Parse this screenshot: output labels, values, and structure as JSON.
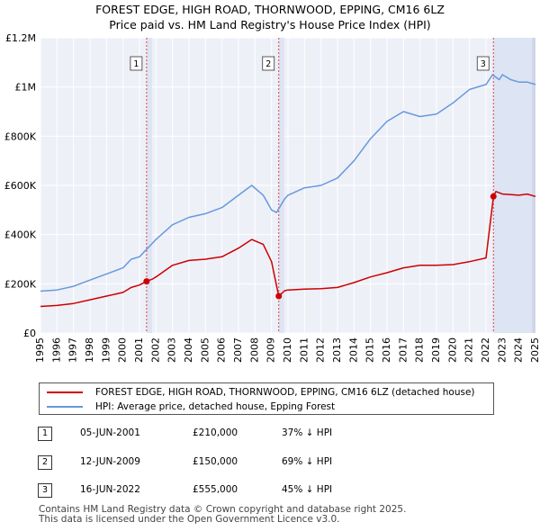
{
  "title_line1": "FOREST EDGE, HIGH ROAD, THORNWOOD, EPPING, CM16 6LZ",
  "title_line2": "Price paid vs. HM Land Registry's House Price Index (HPI)",
  "chart_data": {
    "type": "line",
    "xlim": [
      1995,
      2025
    ],
    "ylim": [
      0,
      1200000
    ],
    "y_ticks": [
      0,
      200000,
      400000,
      600000,
      800000,
      1000000,
      1200000
    ],
    "y_tick_labels": [
      "£0",
      "£200K",
      "£400K",
      "£600K",
      "£800K",
      "£1M",
      "£1.2M"
    ],
    "x_ticks": [
      1995,
      1996,
      1997,
      1998,
      1999,
      2000,
      2001,
      2002,
      2003,
      2004,
      2005,
      2006,
      2007,
      2008,
      2009,
      2010,
      2011,
      2012,
      2013,
      2014,
      2015,
      2016,
      2017,
      2018,
      2019,
      2020,
      2021,
      2022,
      2023,
      2024,
      2025
    ],
    "grid": true,
    "series": [
      {
        "name": "FOREST EDGE, HIGH ROAD, THORNWOOD, EPPING, CM16 6LZ (detached house)",
        "color": "#cc0000",
        "x": [
          1995.0,
          1996.0,
          1997.0,
          1998.0,
          1999.0,
          2000.0,
          2000.5,
          2001.0,
          2001.43,
          2001.8,
          2002.0,
          2003.0,
          2004.0,
          2005.0,
          2006.0,
          2007.0,
          2007.8,
          2008.5,
          2009.0,
          2009.44,
          2009.8,
          2010.0,
          2011.0,
          2012.0,
          2013.0,
          2014.0,
          2015.0,
          2016.0,
          2017.0,
          2018.0,
          2019.0,
          2020.0,
          2021.0,
          2022.0,
          2022.45,
          2022.6,
          2023.0,
          2024.0,
          2024.5,
          2025.0
        ],
        "y": [
          108000,
          112000,
          120000,
          135000,
          150000,
          165000,
          185000,
          195000,
          210000,
          220000,
          228000,
          275000,
          295000,
          300000,
          310000,
          345000,
          380000,
          360000,
          290000,
          150000,
          172000,
          175000,
          178000,
          180000,
          185000,
          205000,
          228000,
          245000,
          265000,
          275000,
          275000,
          278000,
          290000,
          305000,
          555000,
          575000,
          565000,
          560000,
          565000,
          555000
        ]
      },
      {
        "name": "HPI: Average price, detached house, Epping Forest",
        "color": "#6699dd",
        "x": [
          1995.0,
          1996.0,
          1997.0,
          1998.0,
          1999.0,
          2000.0,
          2000.5,
          2001.0,
          2002.0,
          2003.0,
          2004.0,
          2005.0,
          2006.0,
          2007.0,
          2007.8,
          2008.5,
          2009.0,
          2009.3,
          2009.8,
          2010.0,
          2011.0,
          2012.0,
          2013.0,
          2014.0,
          2015.0,
          2016.0,
          2017.0,
          2018.0,
          2019.0,
          2020.0,
          2021.0,
          2022.0,
          2022.4,
          2022.8,
          2023.0,
          2023.5,
          2024.0,
          2024.5,
          2025.0
        ],
        "y": [
          170000,
          175000,
          190000,
          215000,
          240000,
          265000,
          300000,
          310000,
          380000,
          440000,
          470000,
          485000,
          510000,
          560000,
          600000,
          560000,
          500000,
          490000,
          545000,
          560000,
          590000,
          600000,
          630000,
          700000,
          790000,
          860000,
          900000,
          880000,
          890000,
          935000,
          990000,
          1010000,
          1050000,
          1030000,
          1050000,
          1030000,
          1020000,
          1020000,
          1010000
        ]
      }
    ],
    "sales": [
      {
        "label": "1",
        "x": 2001.43,
        "y": 210000
      },
      {
        "label": "2",
        "x": 2009.44,
        "y": 150000
      },
      {
        "label": "3",
        "x": 2022.45,
        "y": 555000
      }
    ]
  },
  "legend": {
    "red_label": "FOREST EDGE, HIGH ROAD, THORNWOOD, EPPING, CM16 6LZ (detached house)",
    "blue_label": "HPI: Average price, detached house, Epping Forest"
  },
  "transactions": [
    {
      "num": "1",
      "date": "05-JUN-2001",
      "price": "£210,000",
      "hpi": "37% ↓ HPI"
    },
    {
      "num": "2",
      "date": "12-JUN-2009",
      "price": "£150,000",
      "hpi": "69% ↓ HPI"
    },
    {
      "num": "3",
      "date": "16-JUN-2022",
      "price": "£555,000",
      "hpi": "45% ↓ HPI"
    }
  ],
  "footer_line1": "Contains HM Land Registry data © Crown copyright and database right 2025.",
  "footer_line2": "This data is licensed under the Open Government Licence v3.0."
}
